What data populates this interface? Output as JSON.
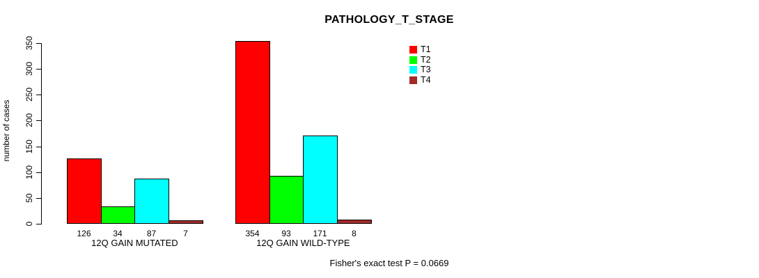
{
  "chart_data": {
    "type": "bar",
    "title": "PATHOLOGY_T_STAGE",
    "xlabel": "",
    "ylabel": "number of cases",
    "categories": [
      "12Q GAIN MUTATED",
      "12Q GAIN WILD-TYPE"
    ],
    "series": [
      {
        "name": "T1",
        "color": "#FF0000",
        "values": [
          126,
          354
        ]
      },
      {
        "name": "T2",
        "color": "#00FF00",
        "values": [
          34,
          93
        ]
      },
      {
        "name": "T3",
        "color": "#00FFFF",
        "values": [
          87,
          171
        ]
      },
      {
        "name": "T4",
        "color": "#A52A2A",
        "values": [
          7,
          8
        ]
      }
    ],
    "yticks": [
      0,
      50,
      100,
      150,
      200,
      250,
      300,
      350
    ],
    "ylim": [
      0,
      350
    ],
    "grid": false,
    "bar_value_labels": true,
    "legend_position": "right-of-plot-top",
    "bar_border_color": "#000000"
  },
  "footer": {
    "stat_text": "Fisher's exact test P = 0.0669"
  }
}
